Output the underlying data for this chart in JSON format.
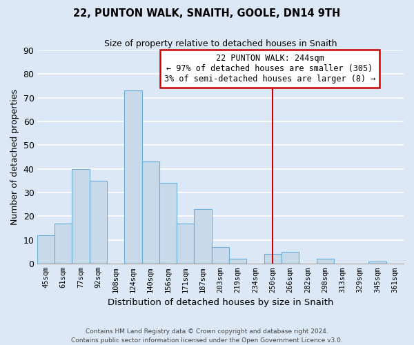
{
  "title": "22, PUNTON WALK, SNAITH, GOOLE, DN14 9TH",
  "subtitle": "Size of property relative to detached houses in Snaith",
  "xlabel": "Distribution of detached houses by size in Snaith",
  "ylabel": "Number of detached properties",
  "categories": [
    "45sqm",
    "61sqm",
    "77sqm",
    "92sqm",
    "108sqm",
    "124sqm",
    "140sqm",
    "156sqm",
    "171sqm",
    "187sqm",
    "203sqm",
    "219sqm",
    "234sqm",
    "250sqm",
    "266sqm",
    "282sqm",
    "298sqm",
    "313sqm",
    "329sqm",
    "345sqm",
    "361sqm"
  ],
  "values": [
    12,
    17,
    40,
    35,
    0,
    73,
    43,
    34,
    17,
    23,
    7,
    2,
    0,
    4,
    5,
    0,
    2,
    0,
    0,
    1,
    0
  ],
  "bar_color": "#c8daea",
  "bar_edge_color": "#6aaed6",
  "vline_index": 13,
  "vline_color": "#cc0000",
  "ylim": [
    0,
    90
  ],
  "yticks": [
    0,
    10,
    20,
    30,
    40,
    50,
    60,
    70,
    80,
    90
  ],
  "annotation_title": "22 PUNTON WALK: 244sqm",
  "annotation_line2": "← 97% of detached houses are smaller (305)",
  "annotation_line3": "3% of semi-detached houses are larger (8) →",
  "annotation_box_color": "#ffffff",
  "annotation_box_edge": "#cc0000",
  "footer_line1": "Contains HM Land Registry data © Crown copyright and database right 2024.",
  "footer_line2": "Contains public sector information licensed under the Open Government Licence v3.0.",
  "background_color": "#dce8f5",
  "grid_color": "#ffffff"
}
